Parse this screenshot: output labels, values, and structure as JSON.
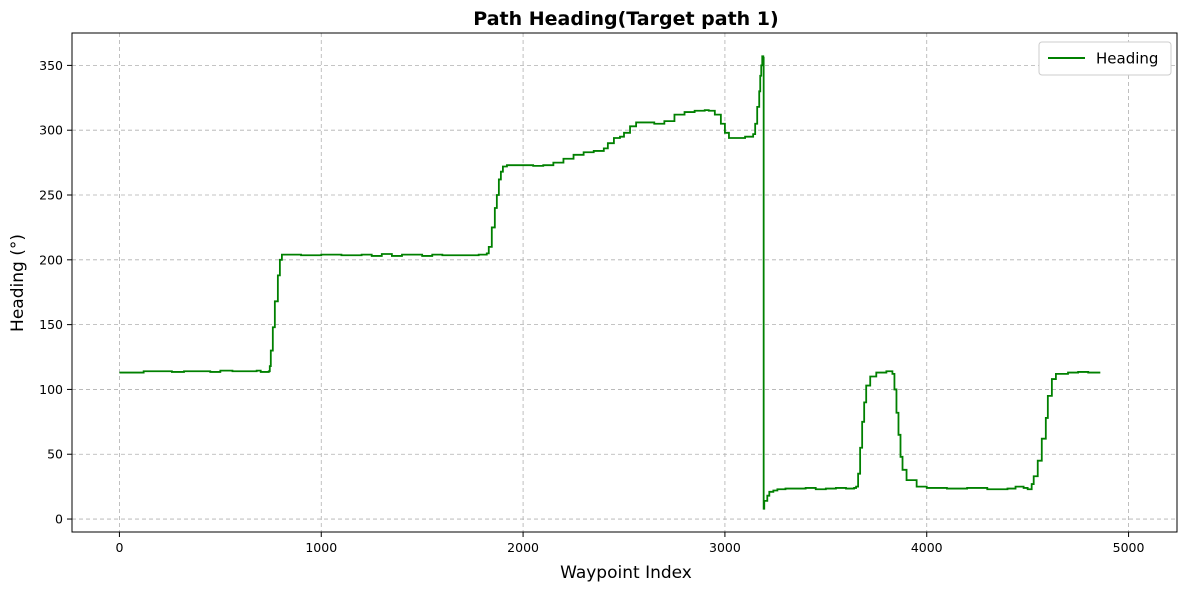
{
  "chart_data": {
    "type": "line",
    "title": "Path Heading(Target path 1)",
    "xlabel": "Waypoint Index",
    "ylabel": "Heading (°)",
    "xlim": [
      -235,
      5240
    ],
    "ylim": [
      -10,
      375
    ],
    "xticks": [
      0,
      1000,
      2000,
      3000,
      4000,
      5000
    ],
    "yticks": [
      0,
      50,
      100,
      150,
      200,
      250,
      300,
      350
    ],
    "grid": true,
    "legend_position": "top-right",
    "series": [
      {
        "name": "Heading",
        "color": "#008000",
        "step": true,
        "points": [
          [
            0,
            113
          ],
          [
            60,
            113
          ],
          [
            120,
            114
          ],
          [
            200,
            114
          ],
          [
            260,
            113.5
          ],
          [
            320,
            114
          ],
          [
            400,
            114
          ],
          [
            450,
            113.5
          ],
          [
            500,
            114.5
          ],
          [
            560,
            114
          ],
          [
            620,
            114
          ],
          [
            680,
            114.5
          ],
          [
            700,
            113.5
          ],
          [
            740,
            114
          ],
          [
            745,
            118
          ],
          [
            750,
            130
          ],
          [
            760,
            148
          ],
          [
            770,
            168
          ],
          [
            785,
            188
          ],
          [
            795,
            200
          ],
          [
            805,
            204
          ],
          [
            830,
            204
          ],
          [
            900,
            203.5
          ],
          [
            1000,
            204
          ],
          [
            1100,
            203.5
          ],
          [
            1200,
            204
          ],
          [
            1250,
            203
          ],
          [
            1300,
            204.5
          ],
          [
            1350,
            203
          ],
          [
            1400,
            204
          ],
          [
            1450,
            204
          ],
          [
            1500,
            203
          ],
          [
            1550,
            204
          ],
          [
            1600,
            203.5
          ],
          [
            1700,
            203.5
          ],
          [
            1780,
            204
          ],
          [
            1820,
            205
          ],
          [
            1830,
            210
          ],
          [
            1845,
            225
          ],
          [
            1860,
            240
          ],
          [
            1870,
            250
          ],
          [
            1880,
            262
          ],
          [
            1890,
            268
          ],
          [
            1900,
            272
          ],
          [
            1920,
            273
          ],
          [
            2000,
            273
          ],
          [
            2050,
            272.5
          ],
          [
            2100,
            273
          ],
          [
            2150,
            275
          ],
          [
            2200,
            278
          ],
          [
            2250,
            281
          ],
          [
            2300,
            283
          ],
          [
            2350,
            284
          ],
          [
            2400,
            286
          ],
          [
            2420,
            290
          ],
          [
            2450,
            294
          ],
          [
            2480,
            295
          ],
          [
            2500,
            298
          ],
          [
            2530,
            303
          ],
          [
            2560,
            306
          ],
          [
            2600,
            306
          ],
          [
            2650,
            305
          ],
          [
            2700,
            307
          ],
          [
            2750,
            312
          ],
          [
            2800,
            314
          ],
          [
            2850,
            315
          ],
          [
            2900,
            315.5
          ],
          [
            2920,
            315
          ],
          [
            2950,
            312
          ],
          [
            2980,
            305
          ],
          [
            3000,
            298
          ],
          [
            3020,
            294
          ],
          [
            3080,
            294
          ],
          [
            3100,
            295
          ],
          [
            3140,
            297
          ],
          [
            3150,
            305
          ],
          [
            3160,
            318
          ],
          [
            3170,
            330
          ],
          [
            3175,
            342
          ],
          [
            3180,
            350
          ],
          [
            3185,
            357
          ],
          [
            3190,
            356
          ],
          [
            3192,
            8
          ],
          [
            3195,
            14
          ],
          [
            3210,
            18
          ],
          [
            3220,
            21
          ],
          [
            3240,
            22
          ],
          [
            3260,
            23
          ],
          [
            3300,
            23.5
          ],
          [
            3400,
            24
          ],
          [
            3450,
            23
          ],
          [
            3500,
            23.5
          ],
          [
            3550,
            24
          ],
          [
            3600,
            23.5
          ],
          [
            3640,
            24
          ],
          [
            3650,
            25
          ],
          [
            3660,
            35
          ],
          [
            3670,
            55
          ],
          [
            3680,
            75
          ],
          [
            3690,
            90
          ],
          [
            3700,
            103
          ],
          [
            3720,
            110
          ],
          [
            3750,
            113
          ],
          [
            3800,
            114
          ],
          [
            3830,
            112
          ],
          [
            3840,
            100
          ],
          [
            3850,
            82
          ],
          [
            3860,
            65
          ],
          [
            3870,
            48
          ],
          [
            3880,
            38
          ],
          [
            3900,
            30
          ],
          [
            3950,
            25
          ],
          [
            4000,
            24
          ],
          [
            4050,
            24
          ],
          [
            4100,
            23.5
          ],
          [
            4200,
            24
          ],
          [
            4300,
            23
          ],
          [
            4400,
            23.5
          ],
          [
            4440,
            25
          ],
          [
            4480,
            24
          ],
          [
            4500,
            23
          ],
          [
            4520,
            27
          ],
          [
            4530,
            33
          ],
          [
            4550,
            45
          ],
          [
            4570,
            62
          ],
          [
            4590,
            78
          ],
          [
            4600,
            95
          ],
          [
            4620,
            108
          ],
          [
            4640,
            112
          ],
          [
            4700,
            113
          ],
          [
            4750,
            113.5
          ],
          [
            4800,
            113
          ],
          [
            4860,
            113
          ]
        ]
      }
    ]
  }
}
